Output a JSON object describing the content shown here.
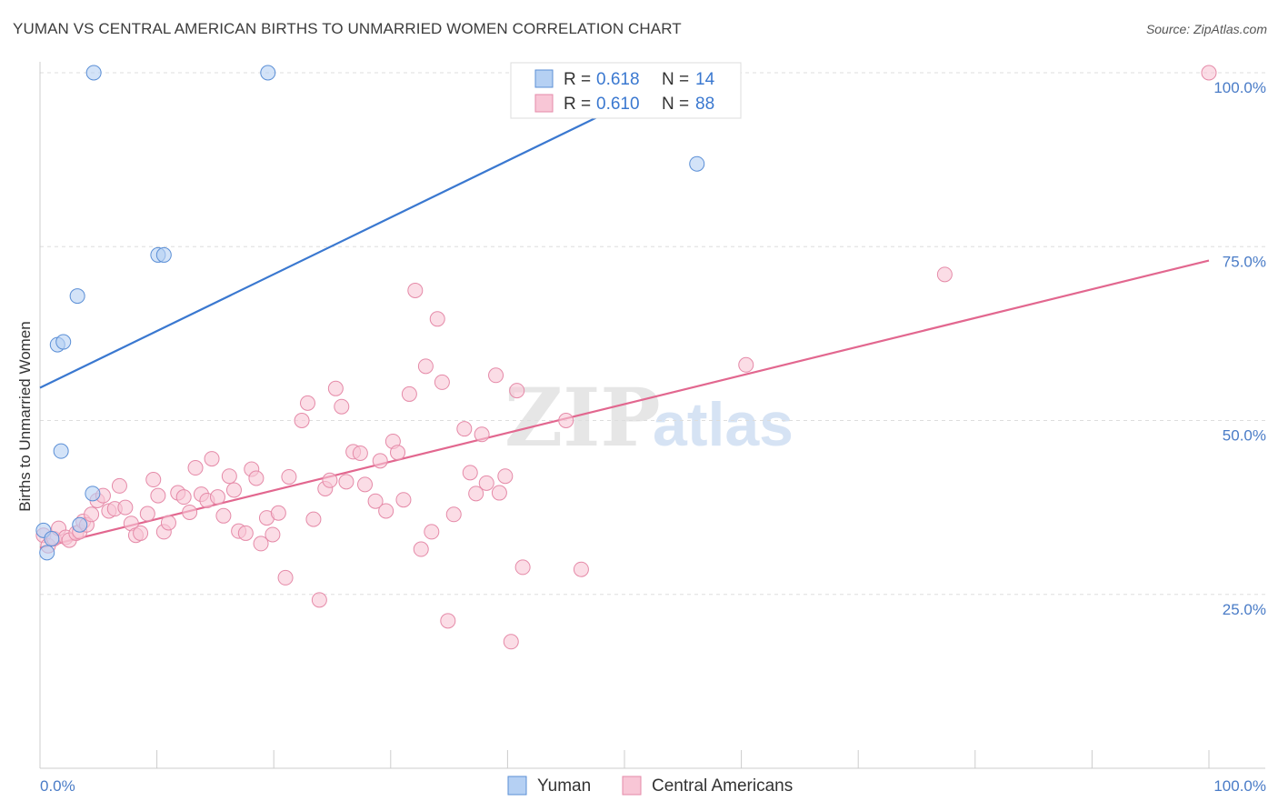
{
  "title": "YUMAN VS CENTRAL AMERICAN BIRTHS TO UNMARRIED WOMEN CORRELATION CHART",
  "source": "Source: ZipAtlas.com",
  "watermark": {
    "zip": "ZIP",
    "atlas": "atlas"
  },
  "colors": {
    "yuman_fill": "#b5d0f3",
    "yuman_stroke": "#5b8fd6",
    "yuman_line": "#3a78d0",
    "central_fill": "#f8c6d6",
    "central_stroke": "#e58aa8",
    "central_line": "#e2678f",
    "tick_text": "#4a7cc7",
    "grid": "#dddddd"
  },
  "legend": {
    "rows": [
      {
        "r_label": "R =",
        "r_value": "0.618",
        "n_label": "N =",
        "n_value": "14"
      },
      {
        "r_label": "R =",
        "r_value": "0.610",
        "n_label": "N =",
        "n_value": "88"
      }
    ]
  },
  "chart_data": {
    "type": "scatter",
    "ylabel": "Births to Unmarried Women",
    "xlim": [
      0,
      100
    ],
    "ylim": [
      0,
      100
    ],
    "x_tick_labels": {
      "left": "0.0%",
      "right": "100.0%"
    },
    "y_ticks": [
      {
        "value": 25,
        "label": "25.0%"
      },
      {
        "value": 50,
        "label": "50.0%"
      },
      {
        "value": 75,
        "label": "75.0%"
      },
      {
        "value": 100,
        "label": "100.0%"
      }
    ],
    "grid": true,
    "legend_position": "top-center",
    "series": [
      {
        "name": "Yuman",
        "r": 0.618,
        "n": 14,
        "trend": {
          "x": [
            0,
            55.5
          ],
          "y": [
            54.7,
            100
          ]
        },
        "points": [
          [
            0.3,
            34.2
          ],
          [
            0.6,
            31.0
          ],
          [
            1.0,
            33.0
          ],
          [
            1.5,
            60.9
          ],
          [
            2.0,
            61.3
          ],
          [
            1.8,
            45.6
          ],
          [
            3.2,
            67.9
          ],
          [
            3.4,
            35.0
          ],
          [
            4.6,
            100
          ],
          [
            4.5,
            39.5
          ],
          [
            10.1,
            73.8
          ],
          [
            10.6,
            73.8
          ],
          [
            19.5,
            100
          ],
          [
            56.2,
            86.9
          ]
        ]
      },
      {
        "name": "Central Americans",
        "r": 0.61,
        "n": 88,
        "trend": {
          "x": [
            0,
            100
          ],
          "y": [
            31.7,
            73.0
          ]
        },
        "points": [
          [
            0.3,
            33.5
          ],
          [
            0.7,
            32.0
          ],
          [
            1.2,
            33.0
          ],
          [
            1.6,
            34.5
          ],
          [
            2.2,
            33.2
          ],
          [
            2.5,
            32.8
          ],
          [
            3.1,
            33.8
          ],
          [
            3.4,
            34.0
          ],
          [
            3.7,
            35.5
          ],
          [
            4.0,
            35.0
          ],
          [
            4.4,
            36.5
          ],
          [
            4.9,
            38.5
          ],
          [
            5.4,
            39.2
          ],
          [
            5.9,
            37.0
          ],
          [
            6.4,
            37.3
          ],
          [
            6.8,
            40.6
          ],
          [
            7.3,
            37.5
          ],
          [
            7.8,
            35.2
          ],
          [
            8.2,
            33.5
          ],
          [
            8.6,
            33.8
          ],
          [
            9.2,
            36.6
          ],
          [
            9.7,
            41.5
          ],
          [
            10.1,
            39.2
          ],
          [
            10.6,
            34.0
          ],
          [
            11.0,
            35.3
          ],
          [
            11.8,
            39.6
          ],
          [
            12.3,
            39.0
          ],
          [
            12.8,
            36.8
          ],
          [
            13.3,
            43.2
          ],
          [
            13.8,
            39.4
          ],
          [
            14.3,
            38.5
          ],
          [
            14.7,
            44.5
          ],
          [
            15.2,
            39.0
          ],
          [
            15.7,
            36.3
          ],
          [
            16.2,
            42.0
          ],
          [
            16.6,
            40.0
          ],
          [
            17.0,
            34.1
          ],
          [
            17.6,
            33.8
          ],
          [
            18.1,
            43.0
          ],
          [
            18.5,
            41.7
          ],
          [
            18.9,
            32.3
          ],
          [
            19.4,
            36.0
          ],
          [
            19.9,
            33.6
          ],
          [
            20.4,
            36.7
          ],
          [
            21.0,
            27.4
          ],
          [
            21.3,
            41.9
          ],
          [
            22.4,
            50.0
          ],
          [
            22.9,
            52.5
          ],
          [
            23.4,
            35.8
          ],
          [
            23.9,
            24.2
          ],
          [
            24.4,
            40.2
          ],
          [
            24.8,
            41.4
          ],
          [
            25.3,
            54.6
          ],
          [
            25.8,
            52.0
          ],
          [
            26.2,
            41.2
          ],
          [
            26.8,
            45.5
          ],
          [
            27.4,
            45.3
          ],
          [
            27.8,
            40.8
          ],
          [
            28.7,
            38.4
          ],
          [
            29.1,
            44.2
          ],
          [
            29.6,
            37.0
          ],
          [
            30.2,
            47.0
          ],
          [
            30.6,
            45.4
          ],
          [
            31.1,
            38.6
          ],
          [
            31.6,
            53.8
          ],
          [
            32.1,
            68.7
          ],
          [
            32.6,
            31.5
          ],
          [
            33.0,
            57.8
          ],
          [
            33.5,
            34.0
          ],
          [
            34.0,
            64.6
          ],
          [
            34.4,
            55.5
          ],
          [
            34.9,
            21.2
          ],
          [
            35.4,
            36.5
          ],
          [
            36.3,
            48.8
          ],
          [
            36.8,
            42.5
          ],
          [
            37.3,
            39.5
          ],
          [
            37.8,
            48.0
          ],
          [
            38.2,
            41.0
          ],
          [
            39.0,
            56.5
          ],
          [
            39.3,
            39.6
          ],
          [
            39.8,
            42.0
          ],
          [
            40.3,
            18.2
          ],
          [
            40.8,
            54.3
          ],
          [
            41.3,
            28.9
          ],
          [
            45.0,
            50.0
          ],
          [
            46.3,
            28.6
          ],
          [
            60.4,
            58.0
          ],
          [
            77.4,
            71.0
          ],
          [
            100,
            100
          ]
        ]
      }
    ]
  },
  "bottom_legend": {
    "items": [
      "Yuman",
      "Central Americans"
    ]
  }
}
